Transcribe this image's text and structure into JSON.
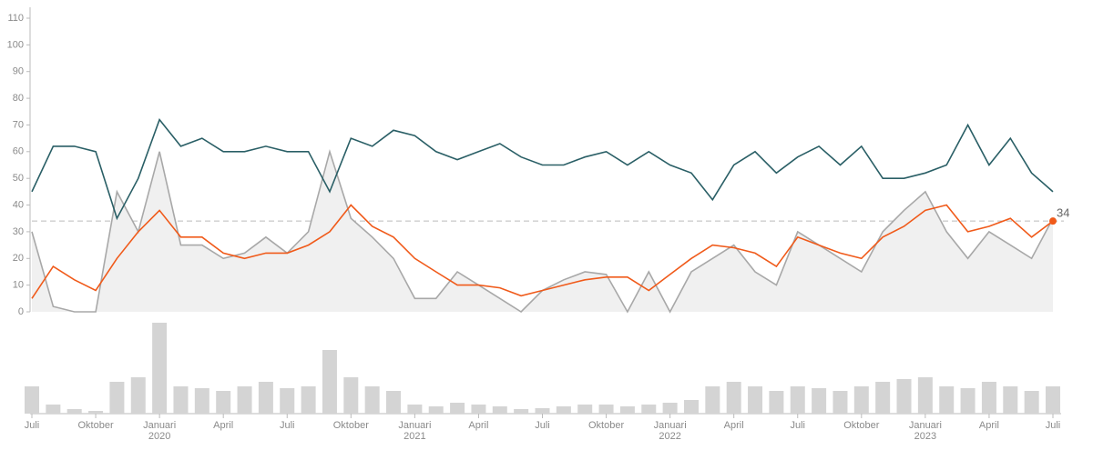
{
  "chart_data": {
    "type": "line",
    "categories": [
      "Juli",
      null,
      null,
      "Oktober",
      null,
      null,
      "Januari",
      null,
      null,
      "April",
      null,
      null,
      "Juli",
      null,
      null,
      "Oktober",
      null,
      null,
      "Januari",
      null,
      null,
      "April",
      null,
      null,
      "Juli",
      null,
      null,
      "Oktober",
      null,
      null,
      "Januari",
      null,
      null,
      "April",
      null,
      null,
      "Juli",
      null,
      null,
      "Oktober",
      null,
      null,
      "Januari",
      null,
      null,
      "April",
      null,
      null,
      "Juli"
    ],
    "years": [
      null,
      null,
      null,
      null,
      null,
      null,
      "2020",
      null,
      null,
      null,
      null,
      null,
      null,
      null,
      null,
      null,
      null,
      null,
      "2021",
      null,
      null,
      null,
      null,
      null,
      null,
      null,
      null,
      null,
      null,
      null,
      "2022",
      null,
      null,
      null,
      null,
      null,
      null,
      null,
      null,
      null,
      null,
      null,
      "2023",
      null,
      null,
      null,
      null,
      null,
      null
    ],
    "ylim": [
      0,
      110
    ],
    "yticks": [
      0,
      10,
      20,
      30,
      40,
      50,
      60,
      70,
      80,
      90,
      100,
      110
    ],
    "reference": 34,
    "series": [
      {
        "color": "#a8a8a8",
        "area": true,
        "values": [
          30,
          2,
          0,
          0,
          45,
          30,
          60,
          25,
          25,
          20,
          22,
          28,
          22,
          30,
          60,
          35,
          28,
          20,
          5,
          5,
          15,
          10,
          5,
          0,
          8,
          12,
          15,
          14,
          0,
          15,
          0,
          15,
          20,
          25,
          15,
          10,
          30,
          25,
          20,
          15,
          30,
          38,
          45,
          30,
          20,
          30,
          25,
          20,
          35
        ]
      },
      {
        "color": "#2a5f66",
        "values": [
          45,
          62,
          62,
          60,
          35,
          50,
          72,
          62,
          65,
          60,
          60,
          62,
          60,
          60,
          45,
          65,
          62,
          68,
          66,
          60,
          57,
          60,
          63,
          58,
          55,
          55,
          58,
          60,
          55,
          60,
          55,
          52,
          42,
          55,
          60,
          52,
          58,
          62,
          55,
          62,
          50,
          50,
          52,
          55,
          70,
          55,
          65,
          52,
          45
        ]
      },
      {
        "color": "#f05a1a",
        "values": [
          5,
          17,
          12,
          8,
          20,
          30,
          38,
          28,
          28,
          22,
          20,
          22,
          22,
          25,
          30,
          40,
          32,
          28,
          20,
          15,
          10,
          10,
          9,
          6,
          8,
          10,
          12,
          13,
          13,
          8,
          14,
          20,
          25,
          24,
          22,
          17,
          28,
          25,
          22,
          20,
          28,
          32,
          38,
          40,
          30,
          32,
          35,
          28,
          34
        ]
      }
    ],
    "volume": {
      "color": "#d4d4d4",
      "values": [
        30,
        10,
        5,
        3,
        35,
        40,
        100,
        30,
        28,
        25,
        30,
        35,
        28,
        30,
        70,
        40,
        30,
        25,
        10,
        8,
        12,
        10,
        8,
        5,
        6,
        8,
        10,
        10,
        8,
        10,
        12,
        15,
        30,
        35,
        30,
        25,
        30,
        28,
        25,
        30,
        35,
        38,
        40,
        30,
        28,
        35,
        30,
        25,
        30
      ]
    }
  }
}
